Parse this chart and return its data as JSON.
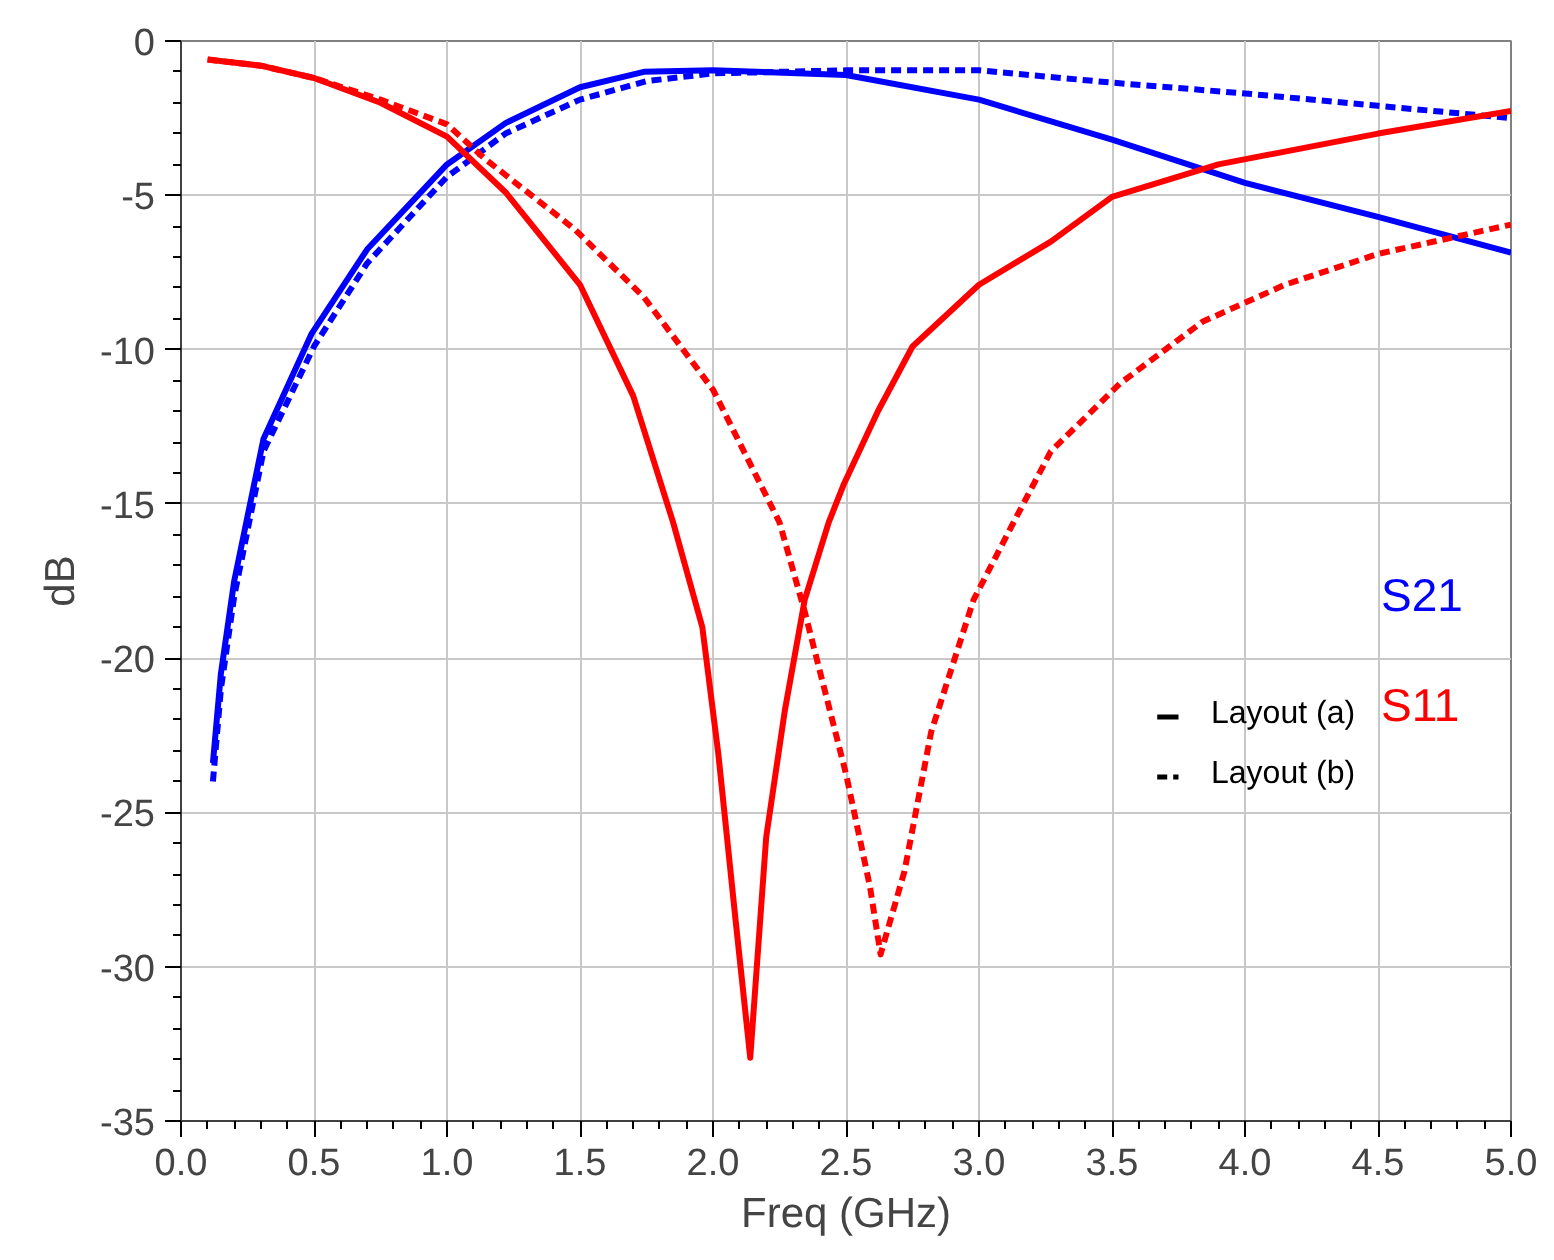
{
  "chart_data": {
    "type": "line",
    "xlabel": "Freq (GHz)",
    "ylabel": "dB",
    "xlim": [
      0,
      5
    ],
    "ylim": [
      -35,
      0
    ],
    "xticks": [
      {
        "value": 0,
        "label": "0.0"
      },
      {
        "value": 0.5,
        "label": "0.5"
      },
      {
        "value": 1,
        "label": "1.0"
      },
      {
        "value": 1.5,
        "label": "1.5"
      },
      {
        "value": 2,
        "label": "2.0"
      },
      {
        "value": 2.5,
        "label": "2.5"
      },
      {
        "value": 3,
        "label": "3.0"
      },
      {
        "value": 3.5,
        "label": "3.5"
      },
      {
        "value": 4,
        "label": "4.0"
      },
      {
        "value": 4.5,
        "label": "4.5"
      },
      {
        "value": 5,
        "label": "5.0"
      }
    ],
    "yticks": [
      0,
      -5,
      -10,
      -15,
      -20,
      -25,
      -30,
      -35
    ],
    "grid": true,
    "marker": "none",
    "annotations": [
      "Layout (a)",
      "Layout (b)"
    ],
    "series": [
      {
        "name": "S21",
        "color": "#0000ff",
        "line_style": "solid",
        "x": [
          0.12,
          0.15,
          0.2,
          0.31,
          0.49,
          0.7,
          1.0,
          1.22,
          1.5,
          1.74,
          2.0,
          2.5,
          3.0,
          3.5,
          4.0,
          4.5,
          5.0
        ],
        "values": [
          -23.4,
          -20.5,
          -17.5,
          -12.9,
          -9.5,
          -6.75,
          -4.0,
          -2.66,
          -1.5,
          -1.0,
          -0.95,
          -1.1,
          -1.9,
          -3.2,
          -4.6,
          -5.7,
          -6.86
        ]
      },
      {
        "color": "#0000ff",
        "line_style": "dashed",
        "x": [
          0.12,
          0.15,
          0.2,
          0.31,
          0.5,
          0.7,
          1.0,
          1.22,
          1.5,
          1.75,
          2.0,
          2.5,
          3.0,
          3.5,
          4.0,
          4.5,
          5.0
        ],
        "values": [
          -24.0,
          -21.0,
          -18.0,
          -13.3,
          -9.9,
          -7.2,
          -4.4,
          -3.0,
          -1.9,
          -1.3,
          -1.05,
          -0.95,
          -0.95,
          -1.35,
          -1.7,
          -2.1,
          -2.5
        ]
      },
      {
        "name": "S11",
        "color": "#ff0000",
        "line_style": "solid",
        "x": [
          0.1,
          0.3,
          0.5,
          0.75,
          1.0,
          1.22,
          1.5,
          1.7,
          1.85,
          1.96,
          2.02,
          2.085,
          2.14,
          2.2,
          2.27,
          2.345,
          2.435,
          2.49,
          2.62,
          2.75,
          3.0,
          3.27,
          3.5,
          3.9,
          4.5,
          5.0
        ],
        "values": [
          -0.6,
          -0.8,
          -1.2,
          -2.0,
          -3.1,
          -4.9,
          -7.9,
          -11.5,
          -15.6,
          -19.0,
          -23.1,
          -28.5,
          -32.95,
          -25.8,
          -21.7,
          -18.1,
          -15.6,
          -14.4,
          -12.0,
          -9.9,
          -7.9,
          -6.5,
          -5.05,
          -4.0,
          -3.0,
          -2.27
        ]
      },
      {
        "color": "#ff0000",
        "line_style": "dashed",
        "x": [
          0.1,
          0.3,
          0.5,
          0.75,
          1.0,
          1.14,
          1.48,
          1.74,
          2.0,
          2.25,
          2.345,
          2.5,
          2.59,
          2.63,
          2.72,
          2.82,
          2.98,
          3.13,
          3.27,
          3.53,
          3.84,
          4.15,
          4.5,
          5.0
        ],
        "values": [
          -0.6,
          -0.8,
          -1.2,
          -1.9,
          -2.7,
          -3.8,
          -6.1,
          -8.3,
          -11.3,
          -15.6,
          -18.5,
          -23.75,
          -27.4,
          -29.6,
          -26.9,
          -22.4,
          -18.1,
          -15.6,
          -13.3,
          -11.1,
          -9.1,
          -7.9,
          -6.9,
          -5.95
        ]
      }
    ]
  }
}
